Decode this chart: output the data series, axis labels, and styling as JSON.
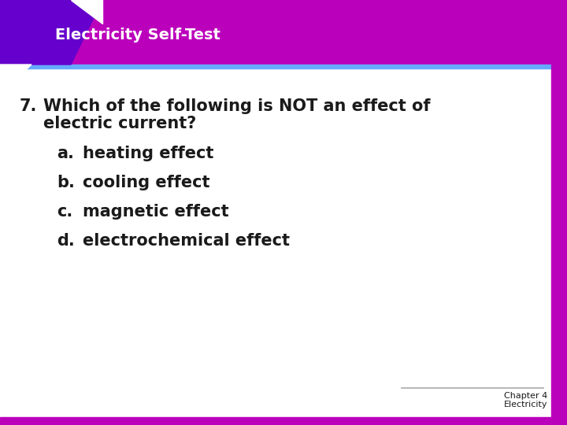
{
  "title": "Electricity Self-Test",
  "title_bg_color": "#BB00BB",
  "title_text_color": "#FFFFFF",
  "title_accent_dark": "#6600CC",
  "title_accent_mid": "#9900AA",
  "border_right_color": "#BB00BB",
  "border_bottom_color": "#BB00BB",
  "blue_line_color": "#66AAFF",
  "question_number": "7.",
  "question_text_line1": "Which of the following is NOT an effect of",
  "question_text_line2": "electric current?",
  "options": [
    {
      "label": "a.",
      "text": "heating effect"
    },
    {
      "label": "b.",
      "text": "cooling effect"
    },
    {
      "label": "c.",
      "text": "magnetic effect"
    },
    {
      "label": "d.",
      "text": "electrochemical effect"
    }
  ],
  "footer_line1": "Chapter 4",
  "footer_line2": "Electricity",
  "bg_color": "#FFFFFF",
  "text_color": "#1A1A1A",
  "title_fontsize": 14,
  "question_fontsize": 15,
  "option_fontsize": 15,
  "footer_fontsize": 8,
  "pendulum_ball_color": "#7EC8E3",
  "pendulum_line_color": "#BBBBBB"
}
